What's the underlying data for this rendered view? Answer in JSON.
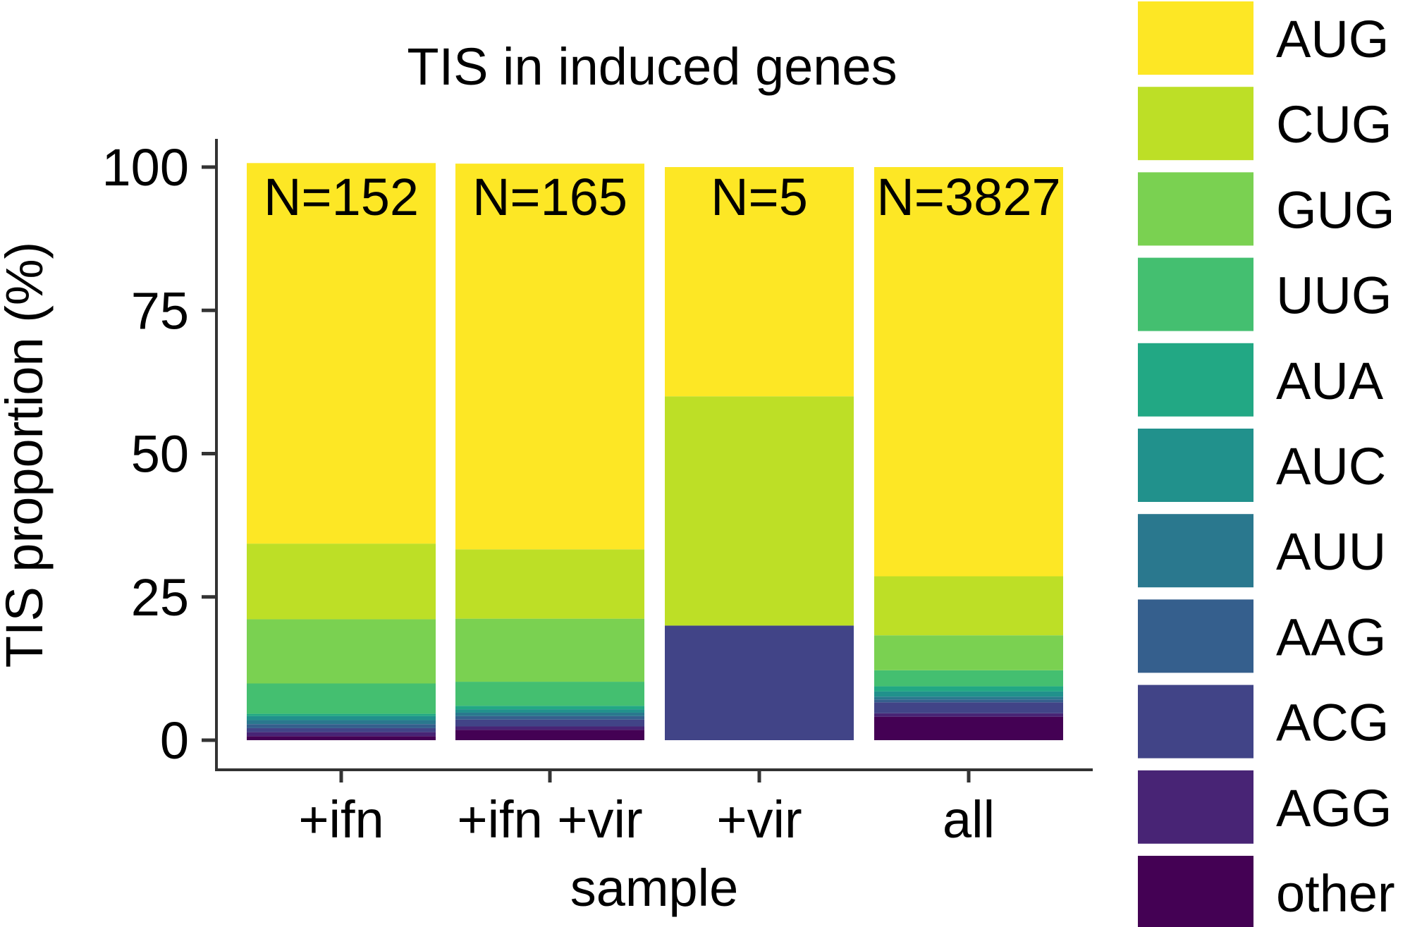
{
  "chart_data": {
    "type": "bar",
    "stacked": true,
    "title": "TIS in induced genes",
    "xlabel": "sample",
    "ylabel": "TIS proportion (%)",
    "ylim": [
      0,
      100
    ],
    "yticks": [
      0,
      25,
      50,
      75,
      100
    ],
    "categories": [
      "+ifn",
      "+ifn +vir",
      "+vir",
      "all"
    ],
    "annotations": [
      "N=152",
      "N=165",
      "N=5",
      "N=3827"
    ],
    "legend_position": "right",
    "series": [
      {
        "name": "other",
        "color": "#440154",
        "values": [
          0.7,
          1.8,
          0,
          4.1
        ]
      },
      {
        "name": "AGG",
        "color": "#482475",
        "values": [
          0.7,
          0.6,
          0,
          0.6
        ]
      },
      {
        "name": "ACG",
        "color": "#414487",
        "values": [
          0.7,
          1.2,
          20,
          1.9
        ]
      },
      {
        "name": "AAG",
        "color": "#355f8d",
        "values": [
          0.7,
          0.6,
          0,
          0.5
        ]
      },
      {
        "name": "AUU",
        "color": "#2a788e",
        "values": [
          0.7,
          0.6,
          0,
          0.5
        ]
      },
      {
        "name": "AUC",
        "color": "#21918c",
        "values": [
          0.7,
          0.6,
          0,
          0.9
        ]
      },
      {
        "name": "AUA",
        "color": "#22a884",
        "values": [
          0.4,
          0.6,
          0,
          0.9
        ]
      },
      {
        "name": "UUG",
        "color": "#44bf70",
        "values": [
          5.3,
          4.2,
          0,
          2.8
        ]
      },
      {
        "name": "GUG",
        "color": "#7ad151",
        "values": [
          11.2,
          11.0,
          0,
          6.1
        ]
      },
      {
        "name": "CUG",
        "color": "#bddf26",
        "values": [
          13.2,
          12.1,
          40,
          10.3
        ]
      },
      {
        "name": "AUG",
        "color": "#fde725",
        "values": [
          66.4,
          67.3,
          40,
          71.4
        ]
      }
    ],
    "legend_order": [
      "AUG",
      "CUG",
      "GUG",
      "UUG",
      "AUA",
      "AUC",
      "AUU",
      "AAG",
      "ACG",
      "AGG",
      "other"
    ]
  }
}
